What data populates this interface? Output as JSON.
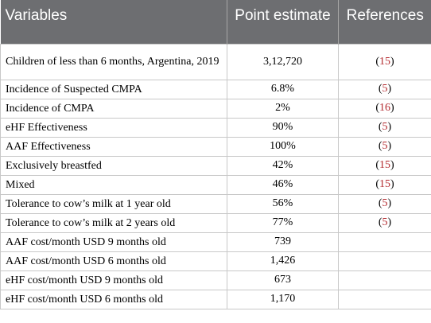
{
  "table": {
    "headers": {
      "variable": "Variables",
      "estimate": "Point estimate",
      "references": "References"
    },
    "rows": [
      {
        "variable": "Children of less than 6 months, Argentina, 2019",
        "estimate": "3,12,720",
        "ref_open": "(",
        "ref_num": "15",
        "ref_close": ")"
      },
      {
        "variable": "Incidence of Suspected CMPA",
        "estimate": "6.8%",
        "ref_open": "(",
        "ref_num": "5",
        "ref_close": ")"
      },
      {
        "variable": "Incidence of CMPA",
        "estimate": "2%",
        "ref_open": "(",
        "ref_num": "16",
        "ref_close": ")"
      },
      {
        "variable": "eHF Effectiveness",
        "estimate": "90%",
        "ref_open": "(",
        "ref_num": "5",
        "ref_close": ")"
      },
      {
        "variable": "AAF Effectiveness",
        "estimate": "100%",
        "ref_open": "(",
        "ref_num": "5",
        "ref_close": ")"
      },
      {
        "variable": "Exclusively breastfed",
        "estimate": "42%",
        "ref_open": "(",
        "ref_num": "15",
        "ref_close": ")"
      },
      {
        "variable": "Mixed",
        "estimate": "46%",
        "ref_open": "(",
        "ref_num": "15",
        "ref_close": ")"
      },
      {
        "variable": "Tolerance to cow’s milk at 1 year old",
        "estimate": "56%",
        "ref_open": "(",
        "ref_num": "5",
        "ref_close": ")"
      },
      {
        "variable": "Tolerance to cow’s milk at 2 years old",
        "estimate": "77%",
        "ref_open": "(",
        "ref_num": "5",
        "ref_close": ")"
      },
      {
        "variable": "AAF cost/month USD 9 months old",
        "estimate": "739",
        "ref_open": "",
        "ref_num": "",
        "ref_close": ""
      },
      {
        "variable": "AAF cost/month USD 6 months old",
        "estimate": "1,426",
        "ref_open": "",
        "ref_num": "",
        "ref_close": ""
      },
      {
        "variable": "eHF cost/month USD 9 months old",
        "estimate": "673",
        "ref_open": "",
        "ref_num": "",
        "ref_close": ""
      },
      {
        "variable": "eHF cost/month USD 6 months old",
        "estimate": "1,170",
        "ref_open": "",
        "ref_num": "",
        "ref_close": ""
      }
    ]
  },
  "colors": {
    "header_bg": "#6d6e71",
    "header_text": "#ffffff",
    "reference_link": "#b3282d",
    "grid": "#c8c8c8"
  }
}
